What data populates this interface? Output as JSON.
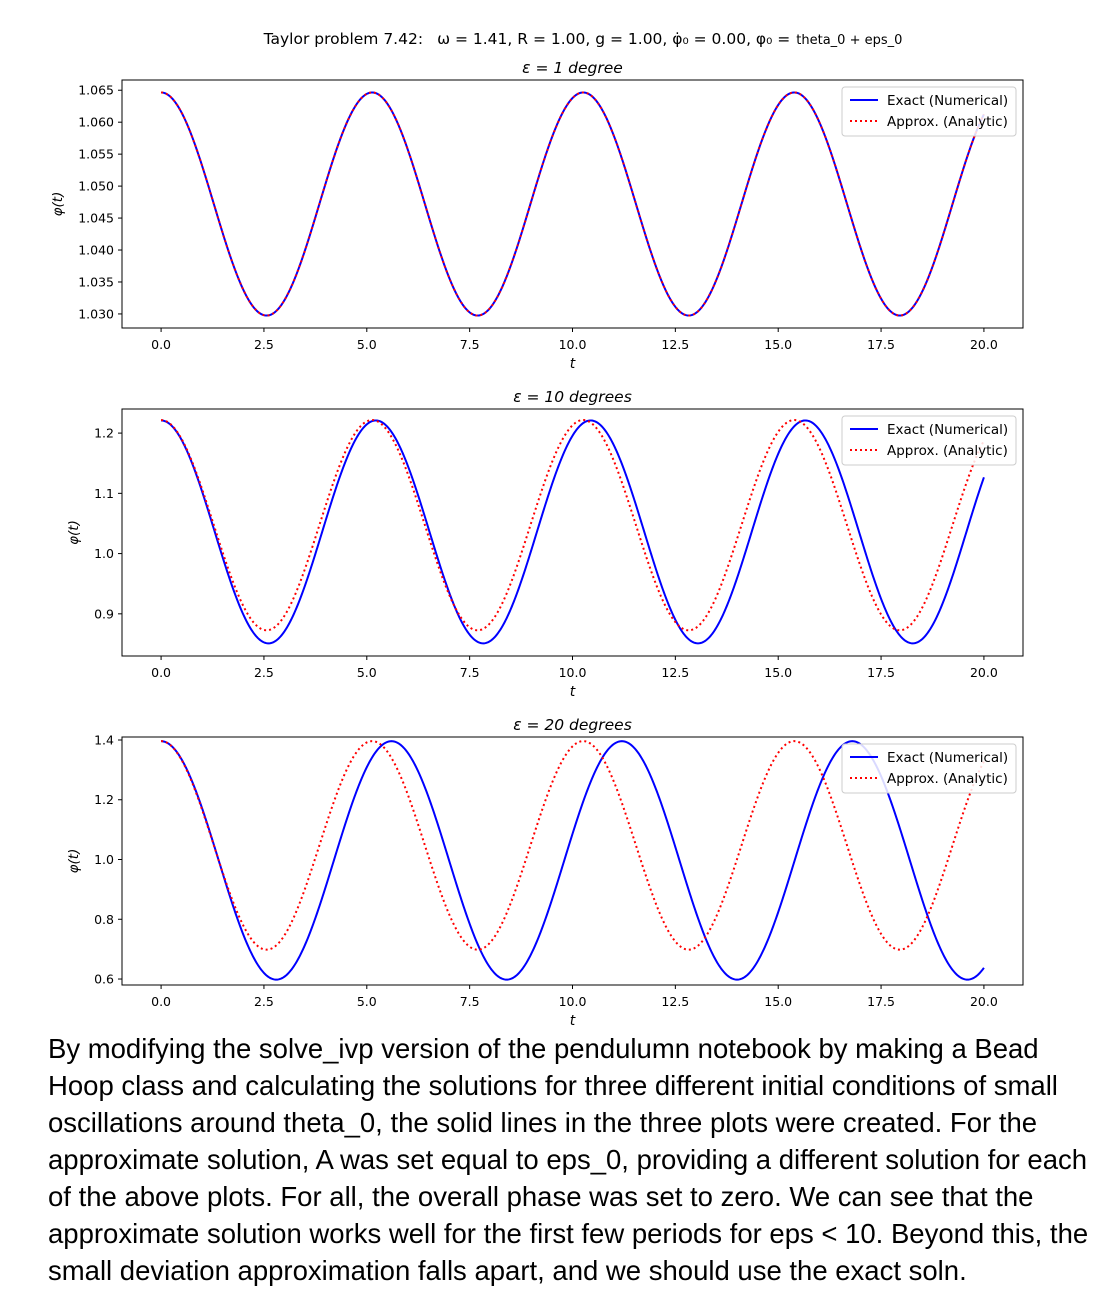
{
  "figure": {
    "suptitle_prefix": "Taylor problem 7.42:",
    "suptitle_params": "ω = 1.41,  R = 1.00,  g = 1.00,  φ̇₀ = 0.00,  φ₀ =",
    "suptitle_suffix": "theta_0 + eps_0"
  },
  "colors": {
    "exact": "#0000ff",
    "approx": "#ff0000",
    "axes": "#000000"
  },
  "legend": {
    "exact_label": "Exact (Numerical)",
    "approx_label": "Approx. (Analytic)",
    "placement": "top-right"
  },
  "chart_data": [
    {
      "type": "line",
      "title": "ε = 1 degree",
      "xlabel": "t",
      "ylabel": "φ(t)",
      "xlim": [
        -0.95,
        20.95
      ],
      "ylim": [
        1.0278,
        1.0666
      ],
      "xticks": [
        0,
        2.5,
        5,
        7.5,
        10,
        12.5,
        15,
        17.5,
        20
      ],
      "xtick_labels": [
        "0.0",
        "2.5",
        "5.0",
        "7.5",
        "10.0",
        "12.5",
        "15.0",
        "17.5",
        "20.0"
      ],
      "yticks": [
        1.03,
        1.035,
        1.04,
        1.045,
        1.05,
        1.055,
        1.06,
        1.065
      ],
      "ytick_labels": [
        "1.030",
        "1.035",
        "1.040",
        "1.045",
        "1.050",
        "1.055",
        "1.060",
        "1.065"
      ],
      "series": [
        {
          "name": "Exact (Numerical)",
          "style": "solid",
          "center": 1.0472,
          "amplitude": 0.01745,
          "period": 5.13,
          "t_range": [
            0,
            20
          ]
        },
        {
          "name": "Approx. (Analytic)",
          "style": "dotted",
          "center": 1.0472,
          "amplitude": 0.01745,
          "period": 5.13,
          "t_range": [
            0,
            20
          ]
        }
      ]
    },
    {
      "type": "line",
      "title": "ε = 10 degrees",
      "xlabel": "t",
      "ylabel": "φ(t)",
      "xlim": [
        -0.95,
        20.95
      ],
      "ylim": [
        0.83,
        1.24
      ],
      "xticks": [
        0,
        2.5,
        5,
        7.5,
        10,
        12.5,
        15,
        17.5,
        20
      ],
      "xtick_labels": [
        "0.0",
        "2.5",
        "5.0",
        "7.5",
        "10.0",
        "12.5",
        "15.0",
        "17.5",
        "20.0"
      ],
      "yticks": [
        0.9,
        1.0,
        1.1,
        1.2
      ],
      "ytick_labels": [
        "0.9",
        "1.0",
        "1.1",
        "1.2"
      ],
      "series": [
        {
          "name": "Exact (Numerical)",
          "style": "solid",
          "center": 1.036,
          "amplitude": 0.185,
          "period": 5.22,
          "t_range": [
            0,
            20
          ]
        },
        {
          "name": "Approx. (Analytic)",
          "style": "dotted",
          "center": 1.0472,
          "amplitude": 0.1745,
          "period": 5.13,
          "t_range": [
            0,
            20
          ]
        }
      ]
    },
    {
      "type": "line",
      "title": "ε = 20 degrees",
      "xlabel": "t",
      "ylabel": "φ(t)",
      "xlim": [
        -0.95,
        20.95
      ],
      "ylim": [
        0.58,
        1.41
      ],
      "xticks": [
        0,
        2.5,
        5,
        7.5,
        10,
        12.5,
        15,
        17.5,
        20
      ],
      "xtick_labels": [
        "0.0",
        "2.5",
        "5.0",
        "7.5",
        "10.0",
        "12.5",
        "15.0",
        "17.5",
        "20.0"
      ],
      "yticks": [
        0.6,
        0.8,
        1.0,
        1.2,
        1.4
      ],
      "ytick_labels": [
        "0.6",
        "0.8",
        "1.0",
        "1.2",
        "1.4"
      ],
      "series": [
        {
          "name": "Exact (Numerical)",
          "style": "solid",
          "center": 0.997,
          "amplitude": 0.399,
          "period": 5.6,
          "t_range": [
            0,
            20
          ]
        },
        {
          "name": "Approx. (Analytic)",
          "style": "dotted",
          "center": 1.0472,
          "amplitude": 0.349,
          "period": 5.13,
          "t_range": [
            0,
            20
          ]
        }
      ]
    }
  ],
  "caption": "By modifying the solve_ivp version of the pendulumn notebook by making a Bead Hoop class and calculating the solutions for three different initial conditions of small oscillations around theta_0, the solid lines in the three plots were created. For the approximate solution, A was set equal to eps_0, providing a different solution for each of the above plots. For all, the overall phase was set to zero. We can see that the approximate solution works well for the first few periods for eps < 10. Beyond this, the small deviation approximation falls apart, and we should use the exact soln."
}
